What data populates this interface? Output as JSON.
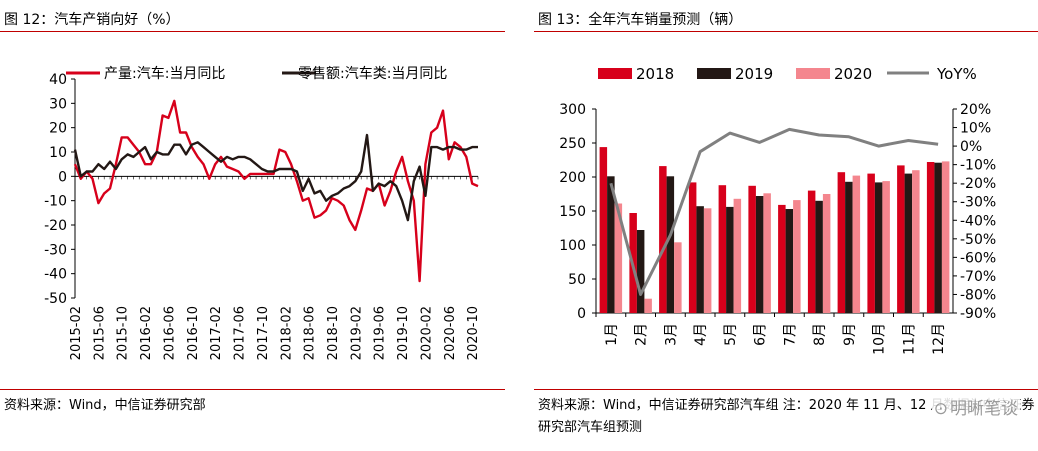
{
  "left": {
    "title": "图 12：汽车产销向好（%）",
    "source": "资料来源：Wind，中信证券研究部",
    "colors": {
      "red": "#d7001b",
      "black": "#231815"
    },
    "chart_data": {
      "type": "line",
      "x": [
        "2015-02",
        "2015-03",
        "2015-04",
        "2015-05",
        "2015-06",
        "2015-07",
        "2015-08",
        "2015-09",
        "2015-10",
        "2015-11",
        "2015-12",
        "2016-01",
        "2016-02",
        "2016-03",
        "2016-04",
        "2016-05",
        "2016-06",
        "2016-07",
        "2016-08",
        "2016-09",
        "2016-10",
        "2016-11",
        "2016-12",
        "2017-01",
        "2017-02",
        "2017-03",
        "2017-04",
        "2017-05",
        "2017-06",
        "2017-07",
        "2017-08",
        "2017-09",
        "2017-10",
        "2017-11",
        "2017-12",
        "2018-01",
        "2018-02",
        "2018-03",
        "2018-04",
        "2018-05",
        "2018-06",
        "2018-07",
        "2018-08",
        "2018-09",
        "2018-10",
        "2018-11",
        "2018-12",
        "2019-01",
        "2019-02",
        "2019-03",
        "2019-04",
        "2019-05",
        "2019-06",
        "2019-07",
        "2019-08",
        "2019-09",
        "2019-10",
        "2019-11",
        "2019-12",
        "2020-01",
        "2020-02",
        "2020-03",
        "2020-04",
        "2020-05",
        "2020-06",
        "2020-07",
        "2020-08",
        "2020-09",
        "2020-10",
        "2020-11"
      ],
      "x_ticks": [
        "2015-02",
        "2015-06",
        "2015-10",
        "2016-02",
        "2016-06",
        "2016-10",
        "2017-02",
        "2017-06",
        "2017-10",
        "2018-02",
        "2018-06",
        "2018-10",
        "2019-02",
        "2019-06",
        "2019-10",
        "2020-02",
        "2020-06",
        "2020-10"
      ],
      "series": [
        {
          "name": "产量:汽车:当月同比",
          "values": [
            5,
            -1,
            2,
            -1,
            -11,
            -7,
            -5,
            5,
            16,
            16,
            13,
            10,
            5,
            5,
            10,
            25,
            24,
            31,
            18,
            18,
            12,
            8,
            5,
            -1,
            5,
            8,
            4,
            3,
            2,
            -1,
            1,
            1,
            1,
            1,
            1,
            11,
            10,
            5,
            -2,
            -10,
            -9,
            -17,
            -16,
            -14,
            -9,
            -10,
            -12,
            -18,
            -22,
            -14,
            -5,
            -6,
            -3,
            -12,
            -6,
            2,
            8,
            -2,
            -10,
            -43,
            5,
            18,
            20,
            27,
            7,
            14,
            12,
            8,
            -3,
            -4
          ]
        },
        {
          "name": "零售额:汽车类:当月同比",
          "values": [
            11,
            0,
            2,
            2,
            5,
            3,
            6,
            3,
            7,
            9,
            8,
            10,
            12,
            7,
            10,
            9,
            9,
            13,
            13,
            9,
            13,
            14,
            12,
            10,
            8,
            6,
            8,
            7,
            8,
            8,
            7,
            5,
            3,
            2,
            2,
            3,
            3,
            3,
            2,
            -6,
            -1,
            -7,
            -6,
            -10,
            -8,
            -7,
            -5,
            -4,
            -2,
            2,
            17,
            -6,
            -3,
            -4,
            -2,
            -4,
            -10,
            -18,
            -2,
            4,
            -8,
            12,
            12,
            11,
            12,
            12,
            11,
            11,
            12,
            12
          ]
        }
      ],
      "ylim": [
        -50,
        40
      ],
      "yticks": [
        -50,
        -40,
        -30,
        -20,
        -10,
        0,
        10,
        20,
        30,
        40
      ],
      "legend": "top",
      "grid": false
    }
  },
  "right": {
    "title": "图 13：全年汽车销量预测（辆）",
    "source": "资料来源：Wind，中信证券研究部汽车组 注：2020 年 11 月、12 月数据为中信证券研究部汽车组预测",
    "watermark": "明晰笔谈",
    "colors": {
      "y2018": "#d7001b",
      "y2019": "#231815",
      "y2020": "#f4868e",
      "yoy": "#808080"
    },
    "chart_data": {
      "type": "bar",
      "categories": [
        "1月",
        "2月",
        "3月",
        "4月",
        "5月",
        "6月",
        "7月",
        "8月",
        "9月",
        "10月",
        "11月",
        "12月"
      ],
      "series": [
        {
          "name": "2018",
          "values": [
            244,
            147,
            216,
            192,
            188,
            187,
            159,
            180,
            207,
            205,
            217,
            222
          ]
        },
        {
          "name": "2019",
          "values": [
            201,
            122,
            201,
            157,
            156,
            172,
            153,
            165,
            193,
            192,
            205,
            221
          ]
        },
        {
          "name": "2020",
          "values": [
            161,
            21,
            104,
            154,
            168,
            176,
            166,
            175,
            202,
            194,
            210,
            223
          ]
        },
        {
          "name": "YoY%",
          "type": "line",
          "axis": "right",
          "values": [
            -20,
            -80,
            -48,
            -3,
            7,
            2,
            9,
            6,
            5,
            0,
            3,
            1
          ]
        }
      ],
      "ylim": [
        0,
        300
      ],
      "yticks": [
        0,
        50,
        100,
        150,
        200,
        250,
        300
      ],
      "y2lim": [
        -90,
        20
      ],
      "y2ticks": [
        "20%",
        "10%",
        "0%",
        "-10%",
        "-20%",
        "-30%",
        "-40%",
        "-50%",
        "-60%",
        "-70%",
        "-80%",
        "-90%"
      ],
      "y2tick_values": [
        20,
        10,
        0,
        -10,
        -20,
        -30,
        -40,
        -50,
        -60,
        -70,
        -80,
        -90
      ],
      "legend": "top",
      "grid": false
    }
  }
}
